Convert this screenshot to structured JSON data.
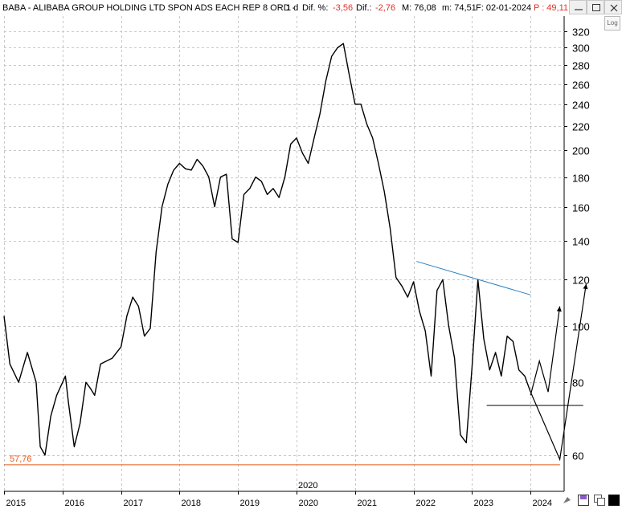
{
  "header": {
    "symbol_title": "BABA - ALIBABA GROUP HOLDING LTD SPON ADS EACH REP 8 ORD -",
    "period": "1 d",
    "dif_pct_label": "Dif. %:",
    "dif_pct_value": "-3,56",
    "dif_label": "Dif.:",
    "dif_value": "-2,76",
    "max_label": "M: 76,08",
    "min_label": "m: 74,51",
    "date_label": "F: 02-01-2024",
    "price_label": "P : 49,11",
    "price_color": "#e0302a"
  },
  "log_button": "Log",
  "chart_data": {
    "type": "line",
    "title": "",
    "xlabel": "",
    "ylabel": "",
    "y_scale": "log",
    "ylim": [
      52,
      340
    ],
    "y_ticks": [
      "60",
      "80",
      "100",
      "120",
      "140",
      "160",
      "180",
      "200",
      "220",
      "240",
      "260",
      "280",
      "300",
      "320"
    ],
    "x_ticks": [
      "2015",
      "2016",
      "2017",
      "2018",
      "2019",
      "2020",
      "2021",
      "2022",
      "2023",
      "2024"
    ],
    "x_marker_label": "2020",
    "support_label": "57,76",
    "support_value": 57.76,
    "support_color": "#e85a1c",
    "series": [
      {
        "color": "#000000",
        "x": [
          2015.0,
          2015.1,
          2015.25,
          2015.4,
          2015.55,
          2015.62,
          2015.7,
          2015.8,
          2015.9,
          2016.05,
          2016.1,
          2016.2,
          2016.3,
          2016.4,
          2016.48,
          2016.55,
          2016.65,
          2016.75,
          2016.85,
          2017.0,
          2017.1,
          2017.2,
          2017.3,
          2017.4,
          2017.5,
          2017.6,
          2017.7,
          2017.8,
          2017.9,
          2018.0,
          2018.1,
          2018.2,
          2018.3,
          2018.4,
          2018.5,
          2018.6,
          2018.7,
          2018.8,
          2018.9,
          2019.0,
          2019.1,
          2019.2,
          2019.3,
          2019.4,
          2019.5,
          2019.6,
          2019.7,
          2019.8,
          2019.9,
          2020.0,
          2020.1,
          2020.2,
          2020.3,
          2020.4,
          2020.5,
          2020.6,
          2020.7,
          2020.8,
          2020.9,
          2021.0,
          2021.1,
          2021.2,
          2021.3,
          2021.4,
          2021.5,
          2021.6,
          2021.7,
          2021.8,
          2021.9,
          2022.0,
          2022.1,
          2022.2,
          2022.3,
          2022.4,
          2022.5,
          2022.6,
          2022.7,
          2022.8,
          2022.9,
          2023.0,
          2023.1,
          2023.2,
          2023.3,
          2023.4,
          2023.5,
          2023.6,
          2023.7,
          2023.8,
          2023.9,
          2024.0
        ],
        "y": [
          104,
          86,
          80,
          90,
          80,
          62,
          60,
          70,
          76,
          82,
          74,
          62,
          68,
          80,
          78,
          76,
          86,
          87,
          88,
          92,
          104,
          112,
          108,
          96,
          99,
          134,
          160,
          175,
          185,
          190,
          186,
          185,
          193,
          188,
          180,
          160,
          180,
          182,
          141,
          139,
          168,
          172,
          180,
          177,
          168,
          172,
          166,
          180,
          205,
          210,
          198,
          190,
          210,
          231,
          263,
          290,
          300,
          305,
          270,
          240,
          240,
          222,
          210,
          190,
          170,
          147,
          121,
          117,
          112,
          119,
          106,
          98,
          82,
          115,
          120,
          100,
          88,
          65,
          63,
          85,
          120,
          95,
          84,
          90,
          82,
          96,
          94,
          84,
          82,
          77
        ]
      }
    ],
    "annotations": [
      {
        "type": "trendline",
        "color": "#2a7fc1",
        "from": [
          2022.05,
          129
        ],
        "to": [
          2024.0,
          113
        ]
      },
      {
        "type": "hline",
        "color": "#000000",
        "from_x": 2023.25,
        "to_x": 2024.9,
        "y": 73
      },
      {
        "type": "projection_path",
        "color": "#000000",
        "points": [
          [
            2024.0,
            76
          ],
          [
            2024.15,
            87
          ],
          [
            2024.3,
            77
          ],
          [
            2024.5,
            108
          ]
        ]
      },
      {
        "type": "projection_path",
        "color": "#000000",
        "points": [
          [
            2024.0,
            77
          ],
          [
            2024.5,
            59
          ],
          [
            2024.95,
            118
          ]
        ]
      }
    ]
  }
}
